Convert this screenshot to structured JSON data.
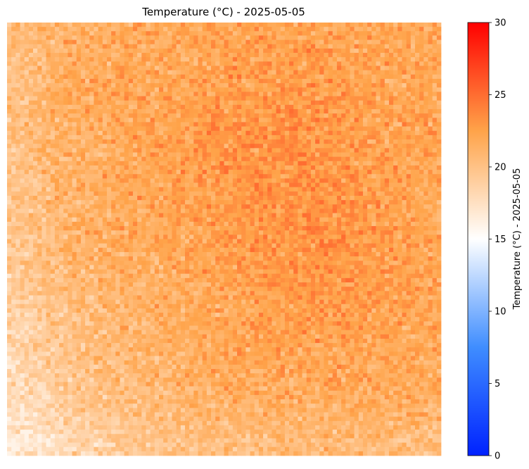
{
  "chart_data": {
    "type": "heatmap",
    "title": "Temperature (°C) - 2025-05-05",
    "xlabel": "",
    "ylabel": "",
    "xaxis_visible": false,
    "yaxis_visible": false,
    "grid": false,
    "vmin": 0,
    "vmax": 30,
    "colorbar": {
      "label": "Temperature (°C) - 2025-05-05",
      "ticks": [
        0,
        5,
        10,
        15,
        20,
        25,
        30
      ],
      "tick_labels": [
        "0",
        "5",
        "10",
        "15",
        "20",
        "25",
        "30"
      ],
      "colormap": [
        "#0022ff",
        "#3f8dff",
        "#ffffff",
        "#ffa349",
        "#ff0000"
      ],
      "placement": "right"
    },
    "grid_shape": [
      100,
      100
    ],
    "value_range_observed": [
      16,
      25
    ],
    "pattern": "Noisy field of roughly 17-24 °C: warmest (about 22-24 °C, deeper orange) through the upper-centre and middle-right, coolest (about 17-19 °C, pale peach) along the left edge and in the bottom-left corner."
  }
}
